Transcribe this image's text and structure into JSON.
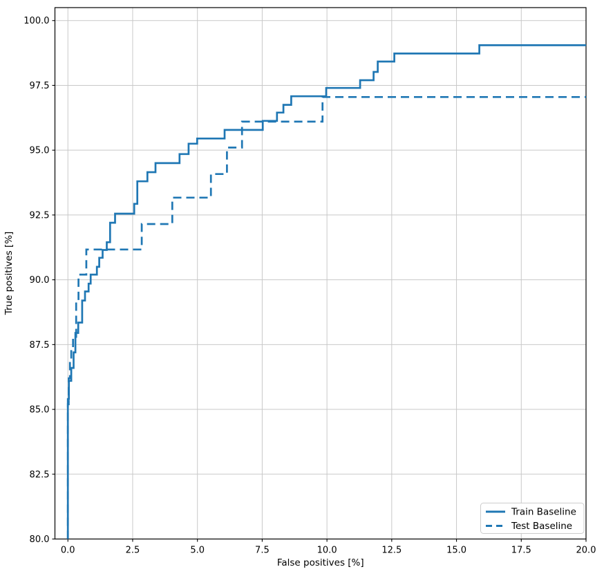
{
  "chart_data": {
    "type": "line",
    "title": "",
    "xlabel": "False positives [%]",
    "ylabel": "True positives [%]",
    "xlim": [
      -0.5,
      20.0
    ],
    "ylim": [
      80.0,
      100.5
    ],
    "xticks": [
      0.0,
      2.5,
      5.0,
      7.5,
      10.0,
      12.5,
      15.0,
      17.5,
      20.0
    ],
    "yticks": [
      80.0,
      82.5,
      85.0,
      87.5,
      90.0,
      92.5,
      95.0,
      97.5,
      100.0
    ],
    "grid": true,
    "legend_position": "lower right",
    "colors": {
      "line": "#1f77b4",
      "grid": "#c8c8c8",
      "spine": "#000000",
      "text": "#000000",
      "legend_border": "#cccccc"
    },
    "series": [
      {
        "name": "Train Baseline",
        "style": "solid",
        "drawstyle": "steps-post",
        "points": [
          [
            0.0,
            80.0
          ],
          [
            0.0,
            85.4
          ],
          [
            0.04,
            86.1
          ],
          [
            0.13,
            86.6
          ],
          [
            0.22,
            87.2
          ],
          [
            0.29,
            87.95
          ],
          [
            0.4,
            88.35
          ],
          [
            0.55,
            89.2
          ],
          [
            0.66,
            89.55
          ],
          [
            0.8,
            89.85
          ],
          [
            0.88,
            90.2
          ],
          [
            1.12,
            90.5
          ],
          [
            1.21,
            90.85
          ],
          [
            1.34,
            91.15
          ],
          [
            1.5,
            91.45
          ],
          [
            1.63,
            92.2
          ],
          [
            1.82,
            92.55
          ],
          [
            2.56,
            92.93
          ],
          [
            2.68,
            93.8
          ],
          [
            3.07,
            94.15
          ],
          [
            3.38,
            94.5
          ],
          [
            4.31,
            94.85
          ],
          [
            4.66,
            95.25
          ],
          [
            4.99,
            95.45
          ],
          [
            6.05,
            95.78
          ],
          [
            7.52,
            96.13
          ],
          [
            8.07,
            96.45
          ],
          [
            8.32,
            96.75
          ],
          [
            8.62,
            97.08
          ],
          [
            9.97,
            97.4
          ],
          [
            11.28,
            97.7
          ],
          [
            11.8,
            98.02
          ],
          [
            11.96,
            98.42
          ],
          [
            12.6,
            98.73
          ],
          [
            15.88,
            99.05
          ],
          [
            20.0,
            99.05
          ]
        ]
      },
      {
        "name": "Test Baseline",
        "style": "dashed",
        "drawstyle": "steps-post",
        "points": [
          [
            0.0,
            80.0
          ],
          [
            0.0,
            85.2
          ],
          [
            0.03,
            86.2
          ],
          [
            0.08,
            87.0
          ],
          [
            0.13,
            87.35
          ],
          [
            0.2,
            87.8
          ],
          [
            0.32,
            89.2
          ],
          [
            0.41,
            90.2
          ],
          [
            0.71,
            91.17
          ],
          [
            2.85,
            92.15
          ],
          [
            4.03,
            93.17
          ],
          [
            5.52,
            94.08
          ],
          [
            6.14,
            95.1
          ],
          [
            6.72,
            96.1
          ],
          [
            9.83,
            97.05
          ],
          [
            20.0,
            97.05
          ]
        ]
      }
    ]
  }
}
